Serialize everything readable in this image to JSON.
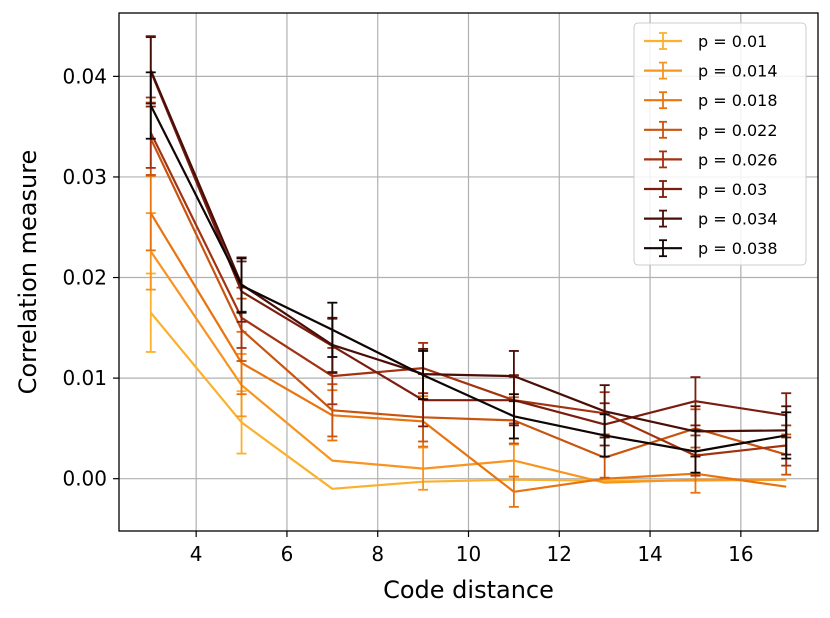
{
  "chart_data": {
    "type": "line",
    "title": "",
    "xlabel": "Code distance",
    "ylabel": "Correlation measure",
    "xlim": [
      2.3,
      17.7
    ],
    "ylim": [
      -0.0052,
      0.0463
    ],
    "xticks": [
      4,
      6,
      8,
      10,
      12,
      14,
      16
    ],
    "xtick_labels": [
      "4",
      "6",
      "8",
      "10",
      "12",
      "14",
      "16"
    ],
    "yticks": [
      0.0,
      0.01,
      0.02,
      0.03,
      0.04
    ],
    "ytick_labels": [
      "0.00",
      "0.01",
      "0.02",
      "0.03",
      "0.04"
    ],
    "grid": true,
    "legend_position": "top-right",
    "x": [
      3,
      5,
      7,
      9,
      11,
      13,
      15,
      17
    ],
    "series": [
      {
        "name": "p = 0.01",
        "color": "#fbb12e",
        "values": [
          0.0165,
          0.0056,
          -0.001,
          -0.0003,
          -0.0001,
          -0.0002,
          -0.0002,
          -0.0001
        ],
        "errors": [
          0.0039,
          0.0031,
          0.0,
          0.0,
          0.0,
          0.0,
          0.0,
          0.0
        ]
      },
      {
        "name": "p = 0.014",
        "color": "#f89420",
        "values": [
          0.0226,
          0.0093,
          0.0018,
          0.001,
          0.0018,
          -0.0004,
          -0.0001,
          -0.0001
        ],
        "errors": [
          0.0038,
          0.0031,
          0.0,
          0.0021,
          0.0016,
          0.0,
          0.0,
          0.0
        ]
      },
      {
        "name": "p = 0.018",
        "color": "#e8740f",
        "values": [
          0.0264,
          0.0115,
          0.0063,
          0.0057,
          -0.0013,
          0.0,
          0.0005,
          -0.0008
        ],
        "errors": [
          0.0037,
          0.0031,
          0.0025,
          0.0025,
          0.0015,
          0.0,
          0.0019,
          0.0
        ]
      },
      {
        "name": "p = 0.022",
        "color": "#c9540e",
        "values": [
          0.0338,
          0.0148,
          0.0068,
          0.0061,
          0.0058,
          0.0021,
          0.005,
          0.0024
        ],
        "errors": [
          0.0036,
          0.0031,
          0.0026,
          0.0024,
          0.0023,
          0.002,
          0.0019,
          0.002
        ]
      },
      {
        "name": "p = 0.026",
        "color": "#a23210",
        "values": [
          0.0344,
          0.016,
          0.0102,
          0.011,
          0.0078,
          0.0065,
          0.0023,
          0.0033
        ],
        "errors": [
          0.0035,
          0.003,
          0.0028,
          0.0025,
          0.0023,
          0.0021,
          0.002,
          0.002
        ]
      },
      {
        "name": "p = 0.03",
        "color": "#7a1d0e",
        "values": [
          0.0405,
          0.0186,
          0.0132,
          0.0078,
          0.0078,
          0.0054,
          0.0077,
          0.0063
        ],
        "errors": [
          0.0035,
          0.003,
          0.0027,
          0.0026,
          0.0025,
          0.0021,
          0.0024,
          0.0022
        ]
      },
      {
        "name": "p = 0.034",
        "color": "#4a0e08",
        "values": [
          0.0406,
          0.0193,
          0.0133,
          0.0104,
          0.0102,
          0.0067,
          0.0047,
          0.0048
        ],
        "errors": [
          0.0033,
          0.0027,
          0.0027,
          0.0025,
          0.0025,
          0.0026,
          0.0025,
          0.0024
        ]
      },
      {
        "name": "p = 0.038",
        "color": "#0f0503",
        "values": [
          0.0371,
          0.0192,
          0.0148,
          0.0103,
          0.0062,
          0.0043,
          0.0027,
          0.0043
        ],
        "errors": [
          0.0033,
          0.0027,
          0.0027,
          0.0024,
          0.0022,
          0.0021,
          0.0021,
          0.0023
        ]
      }
    ]
  }
}
